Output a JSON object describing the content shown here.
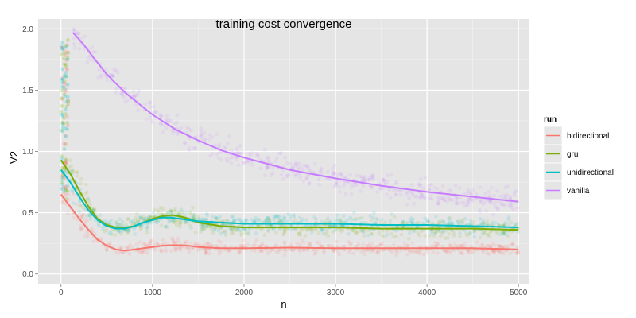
{
  "chart_data": {
    "type": "scatter",
    "title": "training cost convergence",
    "xlabel": "n",
    "ylabel": "V2",
    "xlim": [
      -250,
      5120
    ],
    "ylim": [
      -0.08,
      2.08
    ],
    "xticks": [
      0,
      1000,
      2000,
      3000,
      4000,
      5000
    ],
    "xtick_labels": [
      "0",
      "1000",
      "2000",
      "3000",
      "4000",
      "5000"
    ],
    "yticks": [
      0.0,
      0.5,
      1.0,
      1.5,
      2.0
    ],
    "ytick_labels": [
      "0.0",
      "0.5",
      "1.0",
      "1.5",
      "2.0"
    ],
    "grid": true,
    "legend": {
      "title": "run",
      "placement": "right"
    },
    "points_per_series_approx": 5000,
    "marker_opacity": 0.12,
    "series": [
      {
        "name": "bidirectional",
        "color": "#F8766D",
        "scatter_spread": 0.05,
        "smooth": {
          "x": [
            0,
            100,
            200,
            300,
            400,
            500,
            600,
            700,
            800,
            900,
            1000,
            1100,
            1200,
            1300,
            1400,
            1500,
            1750,
            2000,
            2500,
            3000,
            3500,
            4000,
            4500,
            5000
          ],
          "y": [
            0.65,
            0.55,
            0.45,
            0.36,
            0.28,
            0.23,
            0.2,
            0.19,
            0.2,
            0.21,
            0.22,
            0.23,
            0.235,
            0.235,
            0.23,
            0.22,
            0.21,
            0.21,
            0.215,
            0.21,
            0.21,
            0.21,
            0.21,
            0.2
          ]
        }
      },
      {
        "name": "gru",
        "color": "#7CAE00",
        "scatter_spread": 0.07,
        "smooth": {
          "x": [
            0,
            100,
            200,
            300,
            400,
            500,
            600,
            700,
            800,
            900,
            1000,
            1100,
            1200,
            1300,
            1400,
            1500,
            1750,
            2000,
            2500,
            3000,
            3500,
            4000,
            4500,
            5000
          ],
          "y": [
            0.93,
            0.82,
            0.68,
            0.55,
            0.45,
            0.4,
            0.38,
            0.38,
            0.39,
            0.42,
            0.45,
            0.47,
            0.48,
            0.47,
            0.45,
            0.42,
            0.39,
            0.38,
            0.38,
            0.38,
            0.37,
            0.37,
            0.37,
            0.36
          ]
        }
      },
      {
        "name": "unidirectional",
        "color": "#00BFC4",
        "scatter_spread": 0.07,
        "smooth": {
          "x": [
            0,
            100,
            200,
            300,
            400,
            500,
            600,
            700,
            800,
            900,
            1000,
            1100,
            1200,
            1300,
            1400,
            1500,
            1750,
            2000,
            2500,
            3000,
            3500,
            4000,
            4500,
            5000
          ],
          "y": [
            0.85,
            0.75,
            0.63,
            0.52,
            0.44,
            0.39,
            0.37,
            0.37,
            0.39,
            0.42,
            0.44,
            0.46,
            0.46,
            0.45,
            0.44,
            0.43,
            0.42,
            0.41,
            0.41,
            0.41,
            0.4,
            0.4,
            0.39,
            0.38
          ]
        }
      },
      {
        "name": "vanilla",
        "color": "#C77CFF",
        "scatter_spread": 0.1,
        "smooth": {
          "x": [
            130,
            250,
            350,
            500,
            700,
            1000,
            1250,
            1500,
            1750,
            2000,
            2500,
            3000,
            3500,
            4000,
            4500,
            5000
          ],
          "y": [
            1.97,
            1.87,
            1.77,
            1.63,
            1.48,
            1.3,
            1.18,
            1.09,
            1.01,
            0.95,
            0.85,
            0.78,
            0.72,
            0.67,
            0.63,
            0.59
          ]
        }
      }
    ]
  }
}
